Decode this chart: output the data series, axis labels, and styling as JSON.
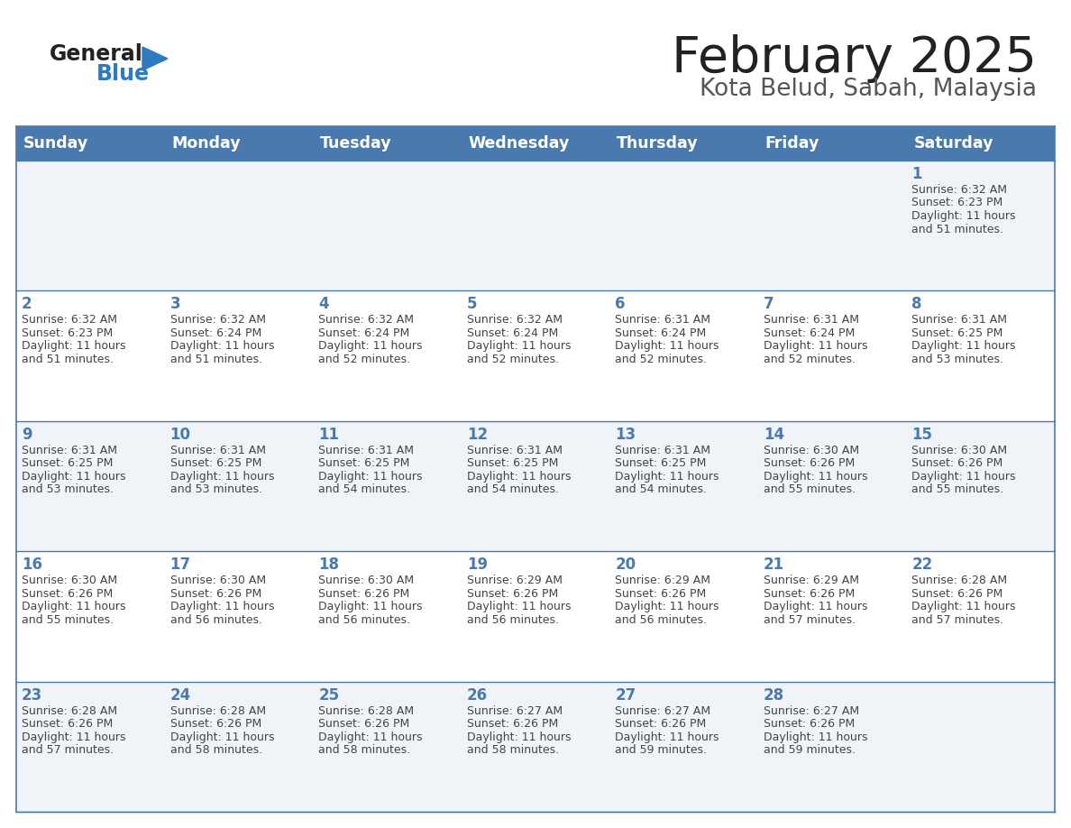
{
  "title": "February 2025",
  "subtitle": "Kota Belud, Sabah, Malaysia",
  "days_of_week": [
    "Sunday",
    "Monday",
    "Tuesday",
    "Wednesday",
    "Thursday",
    "Friday",
    "Saturday"
  ],
  "header_bg": "#4a7aad",
  "header_text": "#ffffff",
  "cell_text_color": "#444444",
  "day_number_color": "#4a7aad",
  "title_color": "#222222",
  "subtitle_color": "#555555",
  "border_color": "#4a7aad",
  "logo_general_color": "#222222",
  "logo_blue_color": "#2e7abf",
  "logo_triangle_color": "#2e7abf",
  "row_bg": [
    "#f0f4f8",
    "#ffffff",
    "#f0f4f8",
    "#ffffff",
    "#f0f4f8"
  ],
  "calendar_data": [
    [
      {
        "day": null,
        "sunrise": null,
        "sunset": null,
        "daylight_mins": null
      },
      {
        "day": null,
        "sunrise": null,
        "sunset": null,
        "daylight_mins": null
      },
      {
        "day": null,
        "sunrise": null,
        "sunset": null,
        "daylight_mins": null
      },
      {
        "day": null,
        "sunrise": null,
        "sunset": null,
        "daylight_mins": null
      },
      {
        "day": null,
        "sunrise": null,
        "sunset": null,
        "daylight_mins": null
      },
      {
        "day": null,
        "sunrise": null,
        "sunset": null,
        "daylight_mins": null
      },
      {
        "day": 1,
        "sunrise": "6:32 AM",
        "sunset": "6:23 PM",
        "daylight_mins": "and 51 minutes."
      }
    ],
    [
      {
        "day": 2,
        "sunrise": "6:32 AM",
        "sunset": "6:23 PM",
        "daylight_mins": "and 51 minutes."
      },
      {
        "day": 3,
        "sunrise": "6:32 AM",
        "sunset": "6:24 PM",
        "daylight_mins": "and 51 minutes."
      },
      {
        "day": 4,
        "sunrise": "6:32 AM",
        "sunset": "6:24 PM",
        "daylight_mins": "and 52 minutes."
      },
      {
        "day": 5,
        "sunrise": "6:32 AM",
        "sunset": "6:24 PM",
        "daylight_mins": "and 52 minutes."
      },
      {
        "day": 6,
        "sunrise": "6:31 AM",
        "sunset": "6:24 PM",
        "daylight_mins": "and 52 minutes."
      },
      {
        "day": 7,
        "sunrise": "6:31 AM",
        "sunset": "6:24 PM",
        "daylight_mins": "and 52 minutes."
      },
      {
        "day": 8,
        "sunrise": "6:31 AM",
        "sunset": "6:25 PM",
        "daylight_mins": "and 53 minutes."
      }
    ],
    [
      {
        "day": 9,
        "sunrise": "6:31 AM",
        "sunset": "6:25 PM",
        "daylight_mins": "and 53 minutes."
      },
      {
        "day": 10,
        "sunrise": "6:31 AM",
        "sunset": "6:25 PM",
        "daylight_mins": "and 53 minutes."
      },
      {
        "day": 11,
        "sunrise": "6:31 AM",
        "sunset": "6:25 PM",
        "daylight_mins": "and 54 minutes."
      },
      {
        "day": 12,
        "sunrise": "6:31 AM",
        "sunset": "6:25 PM",
        "daylight_mins": "and 54 minutes."
      },
      {
        "day": 13,
        "sunrise": "6:31 AM",
        "sunset": "6:25 PM",
        "daylight_mins": "and 54 minutes."
      },
      {
        "day": 14,
        "sunrise": "6:30 AM",
        "sunset": "6:26 PM",
        "daylight_mins": "and 55 minutes."
      },
      {
        "day": 15,
        "sunrise": "6:30 AM",
        "sunset": "6:26 PM",
        "daylight_mins": "and 55 minutes."
      }
    ],
    [
      {
        "day": 16,
        "sunrise": "6:30 AM",
        "sunset": "6:26 PM",
        "daylight_mins": "and 55 minutes."
      },
      {
        "day": 17,
        "sunrise": "6:30 AM",
        "sunset": "6:26 PM",
        "daylight_mins": "and 56 minutes."
      },
      {
        "day": 18,
        "sunrise": "6:30 AM",
        "sunset": "6:26 PM",
        "daylight_mins": "and 56 minutes."
      },
      {
        "day": 19,
        "sunrise": "6:29 AM",
        "sunset": "6:26 PM",
        "daylight_mins": "and 56 minutes."
      },
      {
        "day": 20,
        "sunrise": "6:29 AM",
        "sunset": "6:26 PM",
        "daylight_mins": "and 56 minutes."
      },
      {
        "day": 21,
        "sunrise": "6:29 AM",
        "sunset": "6:26 PM",
        "daylight_mins": "and 57 minutes."
      },
      {
        "day": 22,
        "sunrise": "6:28 AM",
        "sunset": "6:26 PM",
        "daylight_mins": "and 57 minutes."
      }
    ],
    [
      {
        "day": 23,
        "sunrise": "6:28 AM",
        "sunset": "6:26 PM",
        "daylight_mins": "and 57 minutes."
      },
      {
        "day": 24,
        "sunrise": "6:28 AM",
        "sunset": "6:26 PM",
        "daylight_mins": "and 58 minutes."
      },
      {
        "day": 25,
        "sunrise": "6:28 AM",
        "sunset": "6:26 PM",
        "daylight_mins": "and 58 minutes."
      },
      {
        "day": 26,
        "sunrise": "6:27 AM",
        "sunset": "6:26 PM",
        "daylight_mins": "and 58 minutes."
      },
      {
        "day": 27,
        "sunrise": "6:27 AM",
        "sunset": "6:26 PM",
        "daylight_mins": "and 59 minutes."
      },
      {
        "day": 28,
        "sunrise": "6:27 AM",
        "sunset": "6:26 PM",
        "daylight_mins": "and 59 minutes."
      },
      {
        "day": null,
        "sunrise": null,
        "sunset": null,
        "daylight_mins": null
      }
    ]
  ]
}
